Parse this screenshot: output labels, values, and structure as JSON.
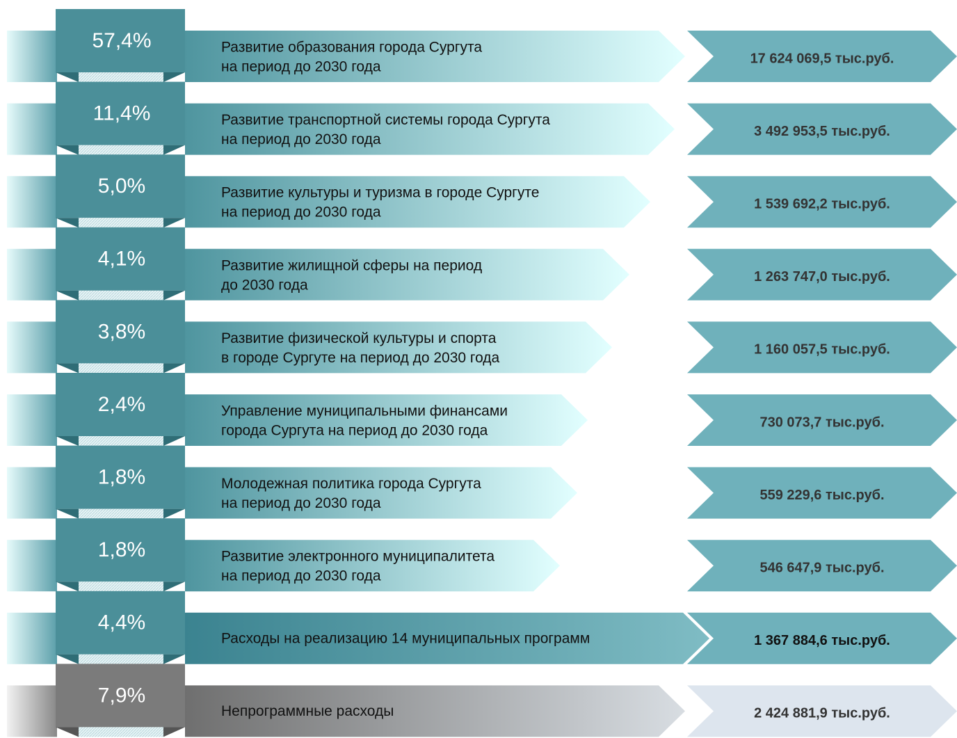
{
  "rows": [
    {
      "percent": "57,4%",
      "label": [
        "Развитие образования города Сургута",
        "на период до 2030 года"
      ],
      "amount": "17 624 069,5 тыс.руб."
    },
    {
      "percent": "11,4%",
      "label": [
        "Развитие транспортной системы города Сургута",
        "на период до 2030 года"
      ],
      "amount": "3 492 953,5 тыс.руб."
    },
    {
      "percent": "5,0%",
      "label": [
        "Развитие культуры и туризма в городе Сургуте",
        "на период до 2030 года"
      ],
      "amount": "1 539 692,2 тыс.руб."
    },
    {
      "percent": "4,1%",
      "label": [
        "Развитие жилищной сферы на период",
        "до 2030 года"
      ],
      "amount": "1 263 747,0 тыс.руб."
    },
    {
      "percent": "3,8%",
      "label": [
        "Развитие физической культуры и спорта",
        "в городе Сургуте на период до 2030 года"
      ],
      "amount": "1 160 057,5 тыс.руб."
    },
    {
      "percent": "2,4%",
      "label": [
        "Управление муниципальными финансами",
        "города Сургута на период до 2030 года"
      ],
      "amount": "730 073,7 тыс.руб."
    },
    {
      "percent": "1,8%",
      "label": [
        "Молодежная политика города Сургута",
        "на период до 2030 года"
      ],
      "amount": "559 229,6 тыс.руб."
    },
    {
      "percent": "1,8%",
      "label": [
        "Развитие электронного муниципалитета",
        "на период до 2030 года"
      ],
      "amount": "546 647,9 тыс.руб."
    },
    {
      "percent": "4,4%",
      "label": [
        "Расходы на реализацию 14 муниципальных программ"
      ],
      "amount": "1 367 884,6 тыс.руб."
    },
    {
      "percent": "7,9%",
      "label": [
        "Непрограммные расходы"
      ],
      "amount": "2 424 881,9 тыс.руб."
    }
  ]
}
